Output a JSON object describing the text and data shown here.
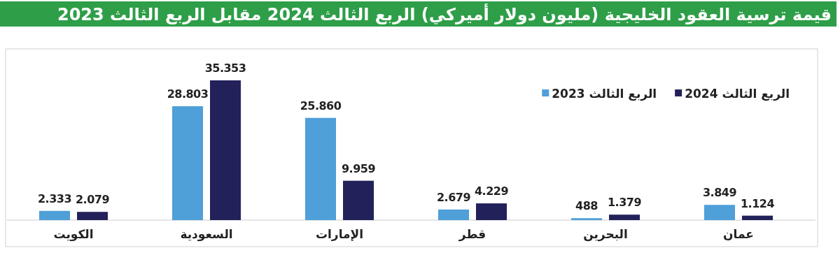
{
  "chart_data": {
    "type": "bar",
    "title": "قيمة ترسية العقود الخليجية (مليون دولار أميركي) الربع الثالث 2024 مقابل الربع الثالث 2023",
    "categories": [
      "الكويت",
      "السعودية",
      "الإمارات",
      "قطر",
      "البحرين",
      "عمان"
    ],
    "series": [
      {
        "name": "الربع الثالث 2023",
        "color": "#4f9fd8",
        "values": [
          2333,
          28803,
          25860,
          2679,
          488,
          3849
        ],
        "value_labels": [
          "2.333",
          "28.803",
          "25.860",
          "2.679",
          "488",
          "3.849"
        ]
      },
      {
        "name": "الربع الثالث 2024",
        "color": "#23215a",
        "values": [
          2079,
          35353,
          9959,
          4229,
          1379,
          1124
        ],
        "value_labels": [
          "2.079",
          "35.353",
          "9.959",
          "4.229",
          "1.379",
          "1.124"
        ]
      }
    ],
    "legend": "top right"
  }
}
